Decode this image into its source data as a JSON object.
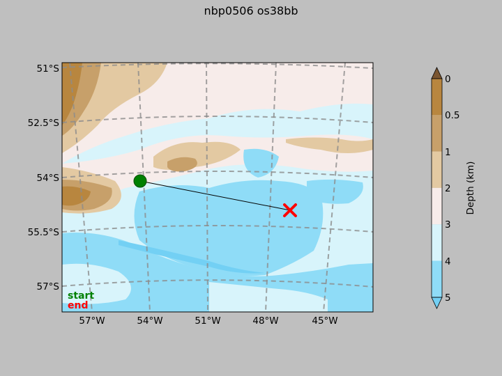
{
  "title": "nbp0506 os38bb",
  "chart_data": {
    "type": "map",
    "projection": "Lambert conformal",
    "lat_ticks": [
      "51°S",
      "52.5°S",
      "54°S",
      "55.5°S",
      "57°S"
    ],
    "lon_ticks": [
      "57°W",
      "54°W",
      "51°W",
      "48°W",
      "45°W"
    ],
    "track": {
      "start": {
        "lon": -54.0,
        "lat": -54.1
      },
      "end": {
        "lon": -46.7,
        "lat": -54.8
      }
    },
    "legend": {
      "start_label": "start",
      "end_label": "end",
      "start_color": "#008000",
      "end_color": "#ff0000"
    },
    "colorbar": {
      "label": "Depth (km)",
      "ticks": [
        "0",
        "0.5",
        "1",
        "2",
        "3",
        "4",
        "5"
      ],
      "colors": [
        "#b8863f",
        "#c7a06a",
        "#e3c9a2",
        "#f7ecea",
        "#d8f4fb",
        "#8fdcf7"
      ],
      "over_color": "#7a5530",
      "under_color": "#73d0f4"
    },
    "grid": true
  }
}
